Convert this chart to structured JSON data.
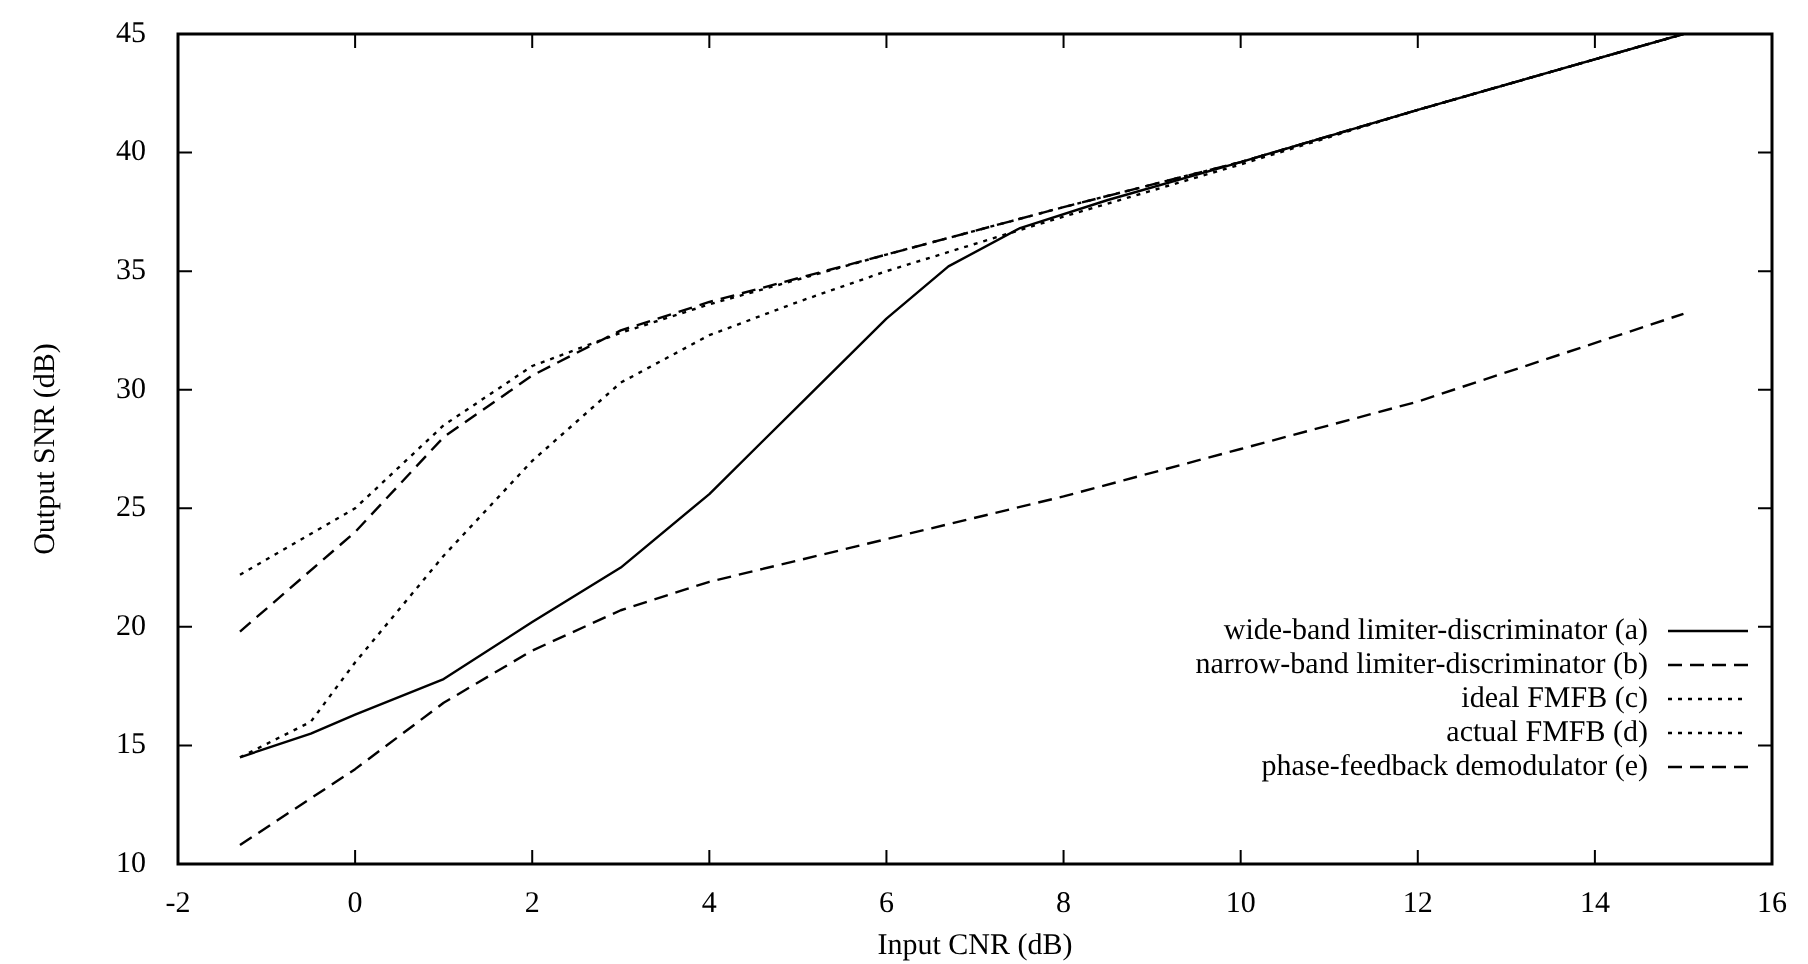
{
  "chart_data": {
    "type": "line",
    "xlabel": "Input CNR (dB)",
    "ylabel": "Output SNR (dB)",
    "xlim": [
      -2,
      16
    ],
    "xticks": [
      -2,
      0,
      2,
      4,
      6,
      8,
      10,
      12,
      14,
      16
    ],
    "ylim": [
      10,
      45
    ],
    "yticks": [
      10,
      15,
      20,
      25,
      30,
      35,
      40,
      45
    ],
    "grid": false,
    "legend": "bottom right",
    "marker": "none",
    "series": [
      {
        "name": "wide-band limiter-discriminator (a)",
        "color": "#000000",
        "line_style": "solid",
        "x": [
          -1.3,
          -0.5,
          0,
          1,
          2,
          3,
          4,
          5,
          6,
          6.7,
          7.5,
          8.5,
          10,
          12,
          15
        ],
        "values": [
          14.5,
          15.5,
          16.3,
          17.8,
          20.2,
          22.5,
          25.6,
          29.3,
          33,
          35.2,
          36.8,
          38,
          39.6,
          41.8,
          45
        ]
      },
      {
        "name": "narrow-band limiter-discriminator (b)",
        "color": "#000000",
        "line_style": "dashed",
        "x": [
          -1.3,
          0,
          1,
          2,
          3,
          4,
          6,
          8,
          10,
          12,
          15
        ],
        "values": [
          10.8,
          14,
          16.8,
          19,
          20.7,
          21.9,
          23.7,
          25.5,
          27.5,
          29.5,
          33.2
        ]
      },
      {
        "name": "ideal FMFB (c)",
        "color": "#000000",
        "line_style": "dotted",
        "x": [
          -1.3,
          0,
          1,
          2,
          3,
          4,
          6,
          8,
          10,
          12,
          15
        ],
        "values": [
          22.2,
          25,
          28.5,
          31,
          32.4,
          33.6,
          35.7,
          37.7,
          39.6,
          41.8,
          45
        ]
      },
      {
        "name": "actual FMFB (d)",
        "color": "#000000",
        "line_style": "dotted",
        "x": [
          -1.3,
          -0.5,
          0,
          1,
          2,
          3,
          4,
          5,
          6,
          8,
          10,
          12,
          15
        ],
        "values": [
          14.5,
          16,
          18.5,
          23,
          27,
          30.3,
          32.3,
          33.7,
          35,
          37.3,
          39.5,
          41.8,
          45
        ]
      },
      {
        "name": "phase-feedback demodulator (e)",
        "color": "#000000",
        "line_style": "dashed",
        "x": [
          -1.3,
          0,
          1,
          2,
          3,
          4,
          6,
          8,
          10,
          12,
          15
        ],
        "values": [
          19.8,
          24,
          28,
          30.6,
          32.5,
          33.7,
          35.7,
          37.7,
          39.6,
          41.8,
          45
        ]
      }
    ]
  }
}
